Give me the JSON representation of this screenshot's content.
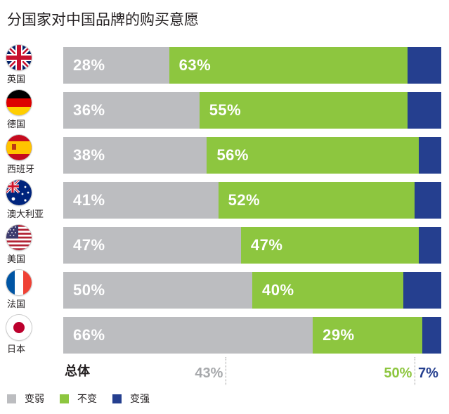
{
  "title": "分国家对中国品牌的购买意愿",
  "colors": {
    "weaker": "#bcbdc0",
    "same": "#8dc63f",
    "stronger": "#253f8f"
  },
  "legend": [
    {
      "key": "weaker",
      "label": "变弱"
    },
    {
      "key": "same",
      "label": "不变"
    },
    {
      "key": "stronger",
      "label": "变强"
    }
  ],
  "chart_data": {
    "type": "bar",
    "stacked": true,
    "orientation": "horizontal",
    "title": "分国家对中国品牌的购买意愿",
    "categories": [
      "英国",
      "德国",
      "西班牙",
      "澳大利亚",
      "美国",
      "法国",
      "日本"
    ],
    "flags": [
      "uk-flag-icon",
      "germany-flag-icon",
      "spain-flag-icon",
      "australia-flag-icon",
      "usa-flag-icon",
      "france-flag-icon",
      "japan-flag-icon"
    ],
    "series": [
      {
        "name": "变弱",
        "values": [
          28,
          36,
          38,
          41,
          47,
          50,
          66
        ],
        "labels": [
          "28%",
          "36%",
          "38%",
          "41%",
          "47%",
          "50%",
          "66%"
        ]
      },
      {
        "name": "不变",
        "values": [
          63,
          55,
          56,
          52,
          47,
          40,
          29
        ],
        "labels": [
          "63%",
          "55%",
          "56%",
          "52%",
          "47%",
          "40%",
          "29%"
        ]
      },
      {
        "name": "变强",
        "values": [
          9,
          9,
          6,
          7,
          6,
          10,
          5
        ]
      }
    ],
    "xlim": [
      0,
      100
    ],
    "legend_position": "bottom-left",
    "overall": {
      "label": "总体",
      "values": [
        43,
        50,
        7
      ],
      "labels": [
        "43%",
        "50%",
        "7%"
      ]
    }
  }
}
